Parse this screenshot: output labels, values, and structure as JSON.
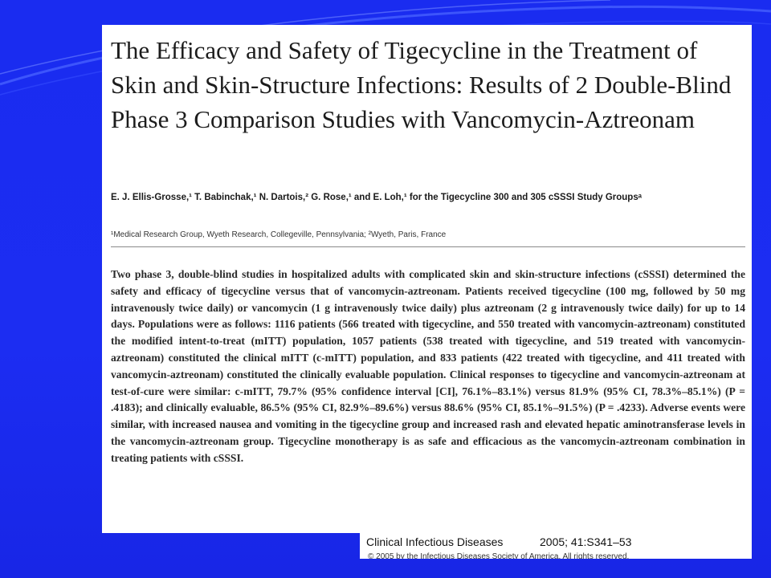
{
  "paper": {
    "title": "The Efficacy and Safety of Tigecycline in the Treatment of Skin and Skin-Structure Infections: Results of 2 Double-Blind Phase 3 Comparison Studies with Vancomycin-Aztreonam",
    "authors": "E. J. Ellis-Grosse,¹ T. Babinchak,¹ N. Dartois,² G. Rose,¹ and E. Loh,¹ for the Tigecycline 300 and 305 cSSSI Study Groupsᵃ",
    "affiliation": "¹Medical Research Group, Wyeth Research, Collegeville, Pennsylvania; ²Wyeth, Paris, France",
    "abstract": "Two phase 3, double-blind studies in hospitalized adults with complicated skin and skin-structure infections (cSSSI) determined the safety and efficacy of tigecycline versus that of vancomycin-aztreonam. Patients received tigecycline (100 mg, followed by 50 mg intravenously twice daily) or vancomycin (1 g intravenously twice daily) plus aztreonam (2 g intravenously twice daily) for up to 14 days. Populations were as follows: 1116 patients (566 treated with tigecycline, and 550 treated with vancomycin-aztreonam) constituted the modified intent-to-treat (mITT) population, 1057 patients (538 treated with tigecycline, and 519 treated with vancomycin-aztreonam) constituted the clinical mITT (c-mITT) population, and 833 patients (422 treated with tigecycline, and 411 treated with vancomycin-aztreonam) constituted the clinically evaluable population. Clinical responses to tigecycline and vancomycin-aztreonam at test-of-cure were similar: c-mITT, 79.7% (95% confidence interval [CI], 76.1%–83.1%) versus 81.9% (95% CI, 78.3%–85.1%) (P = .4183); and clinically evaluable, 86.5% (95% CI, 82.9%–89.6%) versus 88.6% (95% CI, 85.1%–91.5%) (P = .4233). Adverse events were similar, with increased nausea and vomiting in the tigecycline group and increased rash and elevated hepatic aminotransferase levels in the vancomycin-aztreonam group. Tigecycline monotherapy is as safe and efficacious as the vancomycin-aztreonam combination in treating patients with cSSSI."
  },
  "citation": {
    "journal": "Clinical Infectious Diseases",
    "volume": "2005; 41:S341–53",
    "copyright": "© 2005 by the Infectious Diseases Society of America. All rights reserved."
  },
  "colors": {
    "background": "#1c2df2",
    "page": "#ffffff",
    "text": "#1c1c1c"
  }
}
